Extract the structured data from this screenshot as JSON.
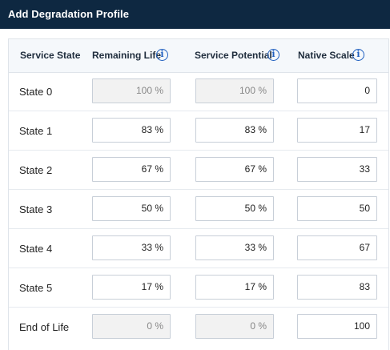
{
  "title": "Add Degradation Profile",
  "header": {
    "service_state": "Service State",
    "remaining_life": "Remaining Life",
    "service_potential": "Service Potential",
    "native_scale": "Native Scale",
    "info_glyph": "i"
  },
  "rows": [
    {
      "label": "State 0",
      "remaining_life": "100 %",
      "service_potential": "100 %",
      "native_scale": "0"
    },
    {
      "label": "State 1",
      "remaining_life": "83 %",
      "service_potential": "83 %",
      "native_scale": "17"
    },
    {
      "label": "State 2",
      "remaining_life": "67 %",
      "service_potential": "67 %",
      "native_scale": "33"
    },
    {
      "label": "State 3",
      "remaining_life": "50 %",
      "service_potential": "50 %",
      "native_scale": "50"
    },
    {
      "label": "State 4",
      "remaining_life": "33 %",
      "service_potential": "33 %",
      "native_scale": "67"
    },
    {
      "label": "State 5",
      "remaining_life": "17 %",
      "service_potential": "17 %",
      "native_scale": "83"
    },
    {
      "label": "End of Life",
      "remaining_life": "0 %",
      "service_potential": "0 %",
      "native_scale": "100"
    }
  ],
  "colors": {
    "title_bar": "#0e2841",
    "info_icon": "#1f5fbf",
    "disabled_field": "#f2f2f2"
  }
}
